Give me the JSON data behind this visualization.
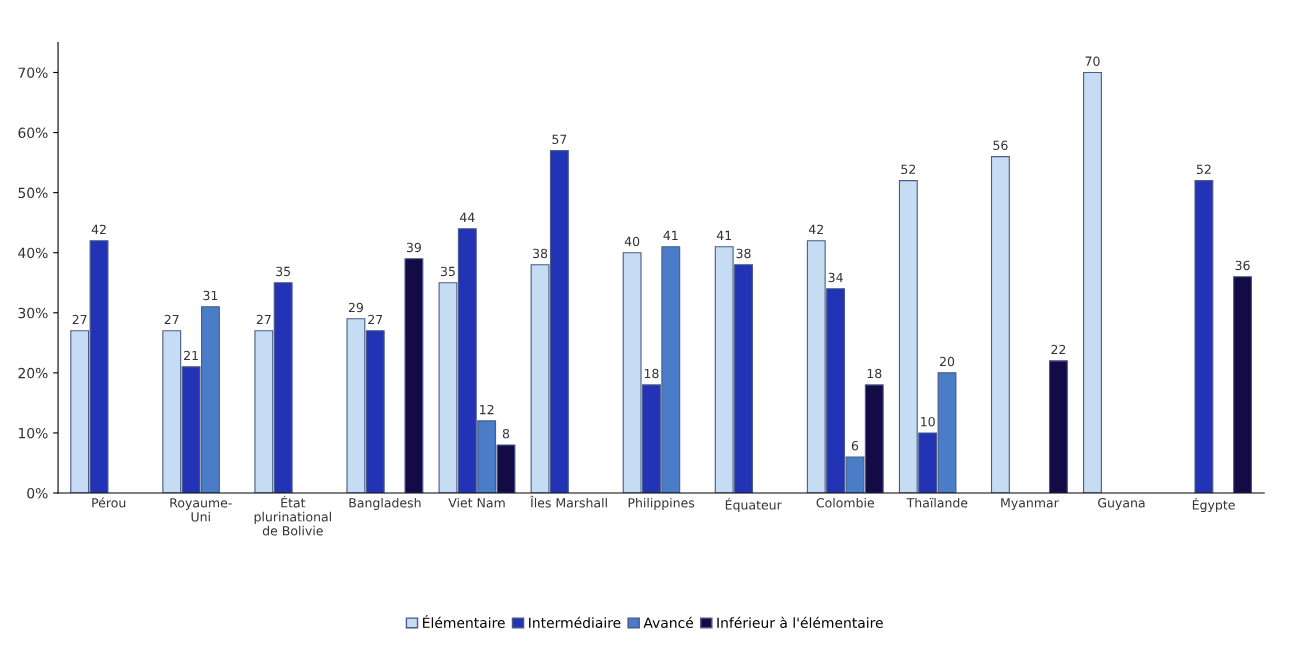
{
  "chart_data": {
    "type": "bar",
    "categories": [
      "Pérou",
      "Royaume-\nUni",
      "État\nplurinational\nde Bolivie",
      "Bangladesh",
      "Viet Nam",
      "Îles Marshall",
      "Philippines",
      "Équateur",
      "Colombie",
      "Thaïlande",
      "Myanmar",
      "Guyana",
      "Égypte"
    ],
    "series": [
      {
        "name": "Élémentaire",
        "color": "#c6dcf2",
        "values": [
          27,
          27,
          27,
          29,
          35,
          38,
          40,
          41,
          42,
          52,
          56,
          70,
          null
        ]
      },
      {
        "name": "Intermédiaire",
        "color": "#2233b5",
        "values": [
          42,
          21,
          35,
          27,
          44,
          57,
          18,
          38,
          34,
          10,
          null,
          null,
          52
        ]
      },
      {
        "name": "Avancé",
        "color": "#4a7cc8",
        "values": [
          null,
          31,
          null,
          null,
          12,
          null,
          41,
          null,
          6,
          20,
          null,
          null,
          null
        ]
      },
      {
        "name": "Inférieur à l'élémentaire",
        "color": "#140a45",
        "values": [
          null,
          null,
          null,
          39,
          8,
          null,
          null,
          null,
          18,
          null,
          22,
          null,
          36
        ]
      }
    ],
    "ylim": [
      0,
      75
    ],
    "yticks": [
      {
        "value": 0,
        "label": "0%"
      },
      {
        "value": 10,
        "label": "10%"
      },
      {
        "value": 20,
        "label": "20%"
      },
      {
        "value": 30,
        "label": "30%"
      },
      {
        "value": 40,
        "label": "40%"
      },
      {
        "value": 50,
        "label": "50%"
      },
      {
        "value": 60,
        "label": "60%"
      },
      {
        "value": 70,
        "label": "70%"
      }
    ],
    "data_labels": true,
    "legend": "bottom",
    "grid": false
  }
}
